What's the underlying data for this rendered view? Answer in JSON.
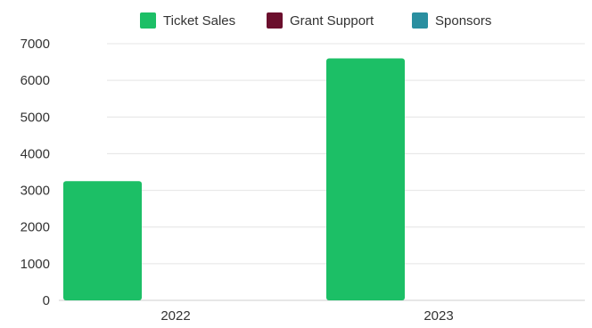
{
  "chart_data": {
    "type": "bar",
    "title": "",
    "xlabel": "",
    "ylabel": "",
    "categories": [
      "2022",
      "2023"
    ],
    "series": [
      {
        "name": "Ticket Sales",
        "color": "#1cbf66",
        "values": [
          3250,
          6600
        ]
      },
      {
        "name": "Grant Support",
        "color": "#6b0f2d",
        "values": [
          0,
          0
        ]
      },
      {
        "name": "Sponsors",
        "color": "#2a8fa0",
        "values": [
          0,
          0
        ]
      }
    ],
    "ylim": [
      0,
      7000
    ],
    "yticks": [
      0,
      1000,
      2000,
      3000,
      4000,
      5000,
      6000,
      7000
    ],
    "grid": true,
    "legend_position": "top-center"
  }
}
